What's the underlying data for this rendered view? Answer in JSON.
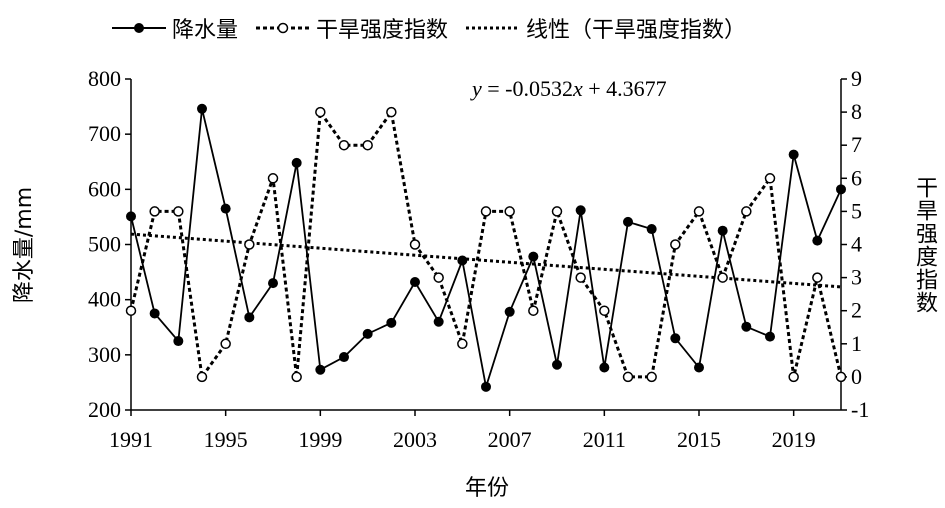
{
  "chart_data": {
    "type": "line",
    "legend_position": "top",
    "legend": {
      "rainfall": "降水量",
      "drought": "干旱强度指数",
      "trend": "线性（干旱强度指数）"
    },
    "equation": {
      "y": "y",
      "mid": " = -0.0532",
      "x": "x",
      "tail": " + 4.3677"
    },
    "xlabel": "年份",
    "ylabel_left": "降水量/mm",
    "ylabel_right": "干旱强度指数",
    "x_ticks": [
      1991,
      1995,
      1999,
      2003,
      2007,
      2011,
      2015,
      2019
    ],
    "xlim": [
      1991,
      2021
    ],
    "y_left": {
      "lim": [
        200,
        800
      ],
      "ticks": [
        200,
        300,
        400,
        500,
        600,
        700,
        800
      ]
    },
    "y_right": {
      "lim": [
        -1,
        9
      ],
      "ticks": [
        -1,
        0,
        1,
        2,
        3,
        4,
        5,
        6,
        7,
        8,
        9
      ]
    },
    "grid": false,
    "x": [
      1991,
      1992,
      1993,
      1994,
      1995,
      1996,
      1997,
      1998,
      1999,
      2000,
      2001,
      2002,
      2003,
      2004,
      2005,
      2006,
      2007,
      2008,
      2009,
      2010,
      2011,
      2012,
      2013,
      2014,
      2015,
      2016,
      2017,
      2018,
      2019,
      2020,
      2021
    ],
    "series": [
      {
        "name": "降水量",
        "axis": "left",
        "values": [
          551,
          375,
          325,
          746,
          565,
          368,
          430,
          648,
          273,
          296,
          338,
          358,
          432,
          360,
          471,
          242,
          378,
          478,
          282,
          562,
          277,
          541,
          528,
          330,
          277,
          525,
          351,
          333,
          663,
          507,
          600
        ]
      },
      {
        "name": "干旱强度指数",
        "axis": "right",
        "values": [
          2,
          5,
          5,
          0,
          1,
          4,
          6,
          0,
          8,
          7,
          7,
          8,
          4,
          3,
          1,
          5,
          5,
          2,
          5,
          3,
          2,
          0,
          0,
          4,
          5,
          3,
          5,
          6,
          0,
          3,
          0
        ]
      },
      {
        "name": "线性（干旱强度指数）",
        "axis": "right",
        "type": "trend",
        "slope": -0.0532,
        "intercept": 4.3677
      }
    ]
  }
}
